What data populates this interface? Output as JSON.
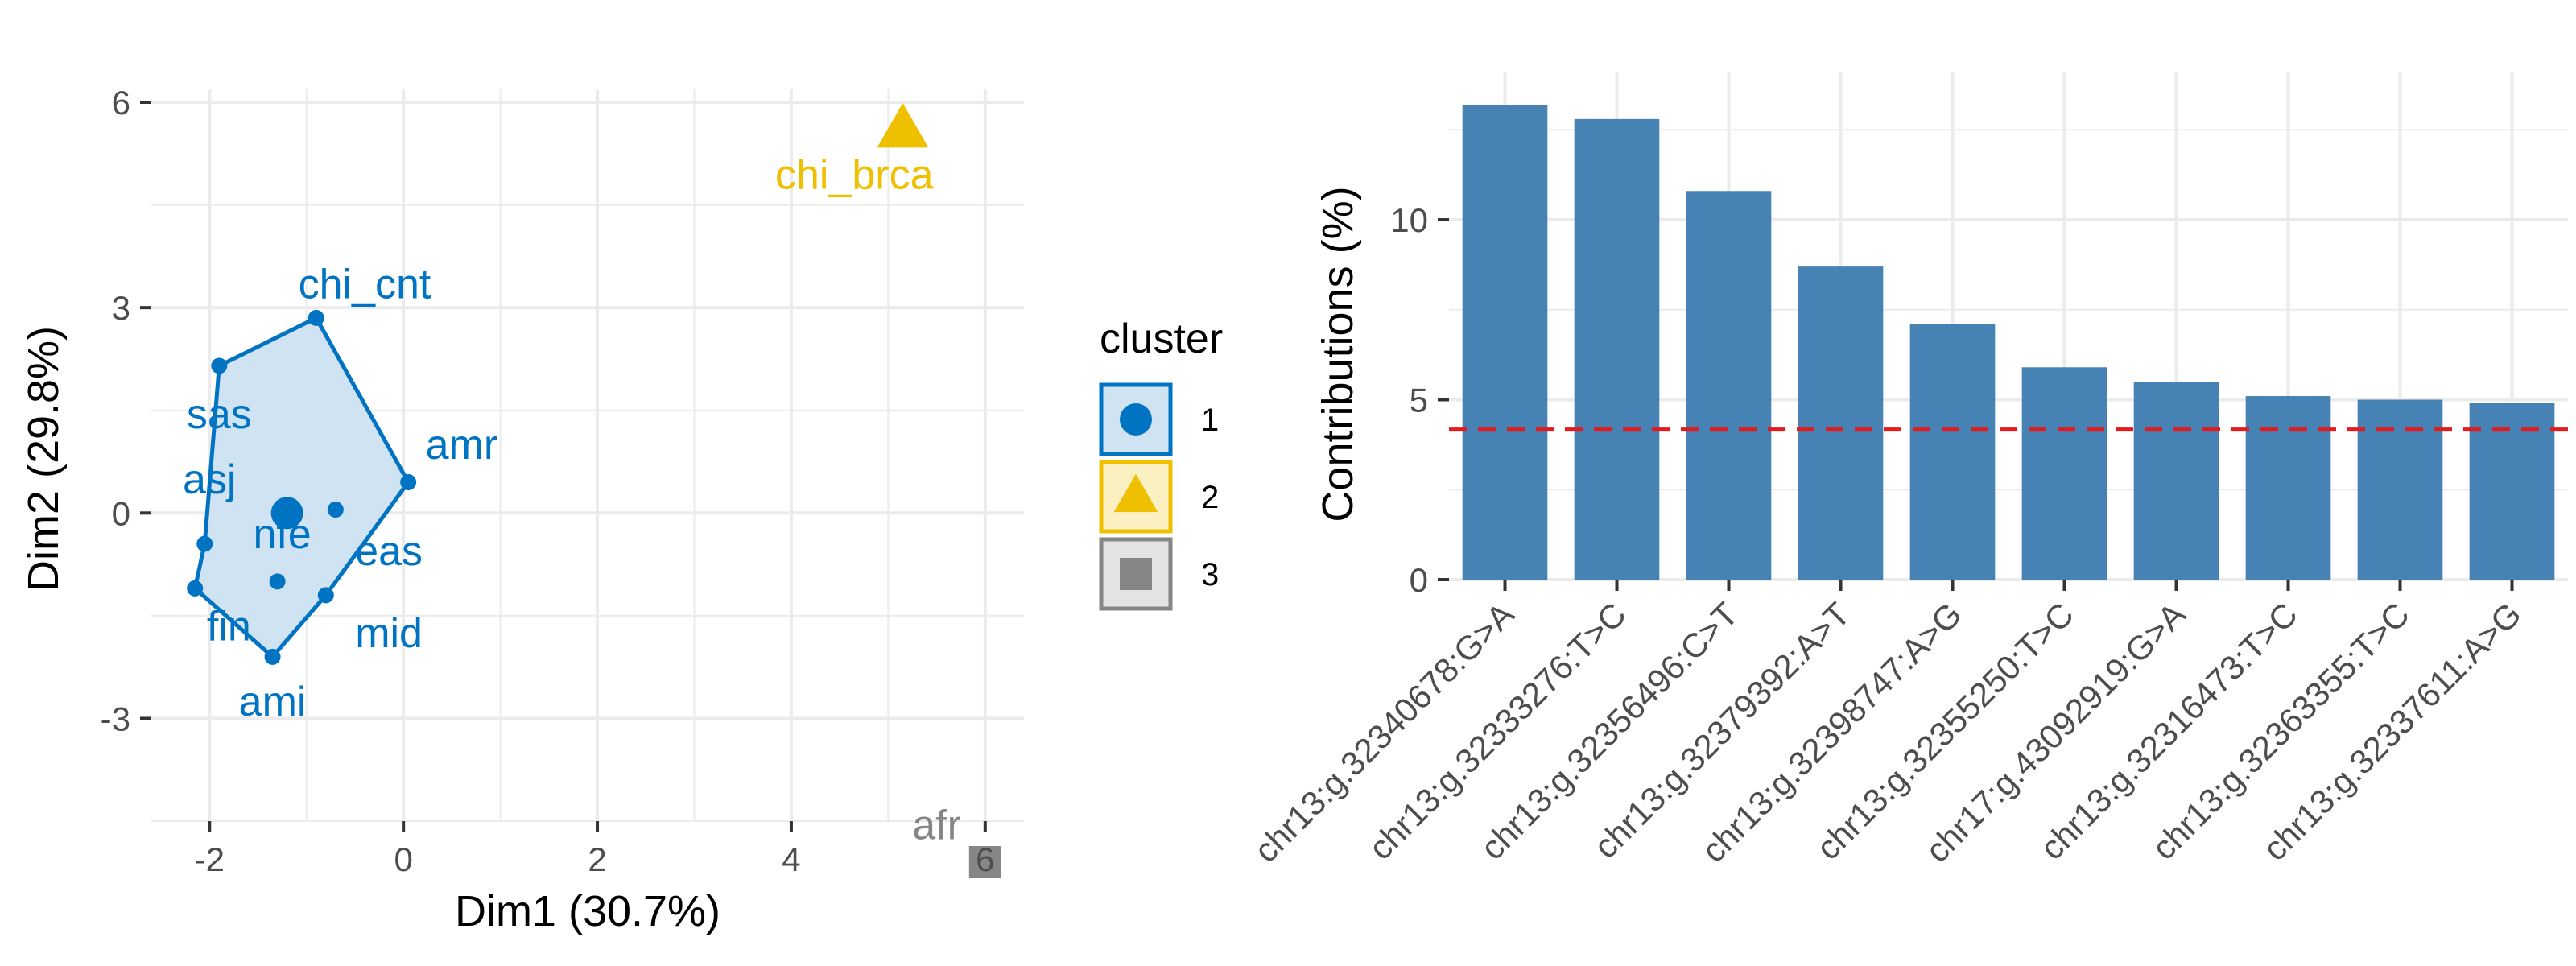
{
  "colors": {
    "cluster1": "#0073C2",
    "cluster1_fill": "#CFE3F2",
    "cluster2": "#EFC000",
    "cluster2_fill": "#FBF0C2",
    "cluster3": "#868686",
    "cluster3_fill": "#E3E3E3",
    "bar": "#4682B4",
    "ref_line": "#E41A1C",
    "grid": "#EBEBEB",
    "tick": "#4d4d4d"
  },
  "chart_data": [
    {
      "type": "scatter",
      "xlabel": "Dim1 (30.7%)",
      "ylabel": "Dim2 (29.8%)",
      "xlim": [
        -2.6,
        6.4
      ],
      "ylim": [
        -4.5,
        6.2
      ],
      "x_ticks": [
        -2,
        0,
        2,
        4,
        6
      ],
      "x_tick_labels": [
        "-2",
        "0",
        "2",
        "4",
        "6"
      ],
      "y_ticks": [
        -3,
        0,
        3,
        6
      ],
      "y_tick_labels": [
        "-3",
        "0",
        "3",
        "6"
      ],
      "grid": true,
      "legend": {
        "title": "cluster",
        "position": "right",
        "entries": [
          {
            "label": "1",
            "shape": "circle",
            "color_key": "cluster1"
          },
          {
            "label": "2",
            "shape": "triangle",
            "color_key": "cluster2"
          },
          {
            "label": "3",
            "shape": "square",
            "color_key": "cluster3"
          }
        ]
      },
      "points": [
        {
          "label": "chi_cnt",
          "x": -0.9,
          "y": 2.85,
          "cluster": 1,
          "label_dx": 0.5,
          "label_dy": 0.5
        },
        {
          "label": "sas",
          "x": -1.9,
          "y": 2.15,
          "cluster": 1,
          "label_dx": 0.0,
          "label_dy": -0.7
        },
        {
          "label": "amr",
          "x": 0.05,
          "y": 0.45,
          "cluster": 1,
          "label_dx": 0.55,
          "label_dy": 0.55
        },
        {
          "label": "asj",
          "x": -2.05,
          "y": -0.45,
          "cluster": 1,
          "label_dx": 0.05,
          "label_dy": 0.95
        },
        {
          "label": "nfe",
          "x": -1.3,
          "y": -1.0,
          "cluster": 1,
          "label_dx": 0.05,
          "label_dy": 0.7
        },
        {
          "label": "eas",
          "x": -0.7,
          "y": 0.05,
          "cluster": 1,
          "label_dx": 0.55,
          "label_dy": -0.6
        },
        {
          "label": "mid",
          "x": -0.8,
          "y": -1.2,
          "cluster": 1,
          "label_dx": 0.65,
          "label_dy": -0.55
        },
        {
          "label": "fin",
          "x": -2.15,
          "y": -1.1,
          "cluster": 1,
          "label_dx": 0.35,
          "label_dy": -0.55
        },
        {
          "label": "ami",
          "x": -1.35,
          "y": -2.1,
          "cluster": 1,
          "label_dx": 0.0,
          "label_dy": -0.65
        },
        {
          "label": "chi_brca",
          "x": 5.15,
          "y": 5.6,
          "cluster": 2,
          "label_dx": -0.5,
          "label_dy": -0.65
        },
        {
          "label": "afr",
          "x": 6.0,
          "y": -5.1,
          "cluster": 3,
          "label_dx": -0.5,
          "label_dy": 0.55
        }
      ],
      "centroids": [
        {
          "cluster": 1,
          "x": -1.2,
          "y": 0.0
        }
      ],
      "hull_cluster1": [
        [
          -0.9,
          2.85
        ],
        [
          0.05,
          0.45
        ],
        [
          -0.8,
          -1.2
        ],
        [
          -1.35,
          -2.1
        ],
        [
          -2.15,
          -1.1
        ],
        [
          -2.05,
          -0.45
        ],
        [
          -1.9,
          2.15
        ]
      ]
    },
    {
      "type": "bar",
      "xlabel": "",
      "ylabel": "Contributions (%)",
      "ylim": [
        0,
        13.2
      ],
      "y_ticks": [
        0,
        5,
        10
      ],
      "y_tick_labels": [
        "0",
        "5",
        "10"
      ],
      "grid": true,
      "categories": [
        "chr13:g.32340678:G>A",
        "chr13:g.32333276:T>C",
        "chr13:g.32356496:C>T",
        "chr13:g.32379392:A>T",
        "chr13:g.32398747:A>G",
        "chr13:g.32355250:T>C",
        "chr17:g.43092919:G>A",
        "chr13:g.32316473:T>C",
        "chr13:g.32363355:T>C",
        "chr13:g.32337611:A>G"
      ],
      "values": [
        13.2,
        12.8,
        10.8,
        8.7,
        7.1,
        5.9,
        5.5,
        5.1,
        5.0,
        4.9
      ],
      "reference_line": 4.17
    }
  ]
}
